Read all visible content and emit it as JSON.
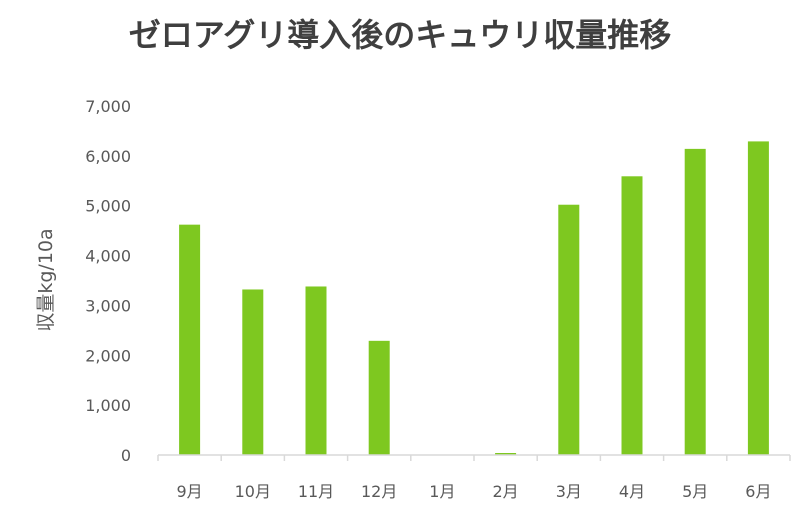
{
  "chart_data": {
    "type": "bar",
    "title": "ゼロアグリ導入後のキュウリ収量推移",
    "xlabel": "",
    "ylabel": "収量kg/10a",
    "categories": [
      "9月",
      "10月",
      "11月",
      "12月",
      "1月",
      "2月",
      "3月",
      "4月",
      "5月",
      "6月"
    ],
    "values": [
      4620,
      3320,
      3380,
      2290,
      0,
      40,
      5020,
      5590,
      6140,
      6290
    ],
    "ylim": [
      0,
      7000
    ],
    "yticks": [
      0,
      1000,
      2000,
      3000,
      4000,
      5000,
      6000,
      7000
    ],
    "ytick_labels": [
      "0",
      "1,000",
      "2,000",
      "3,000",
      "4,000",
      "5,000",
      "6,000",
      "7,000"
    ],
    "bar_color": "#7ec820",
    "axis_color": "#d9d9d9",
    "grid": false,
    "legend": "none"
  }
}
